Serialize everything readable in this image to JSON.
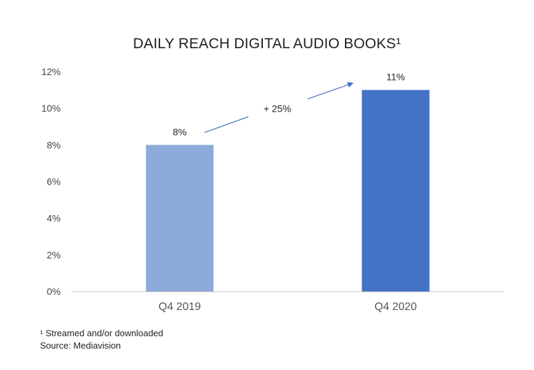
{
  "chart_data": {
    "type": "bar",
    "title": "DAILY REACH DIGITAL AUDIO BOOKS¹",
    "categories": [
      "Q4 2019",
      "Q4 2020"
    ],
    "values": [
      8,
      11
    ],
    "data_labels": [
      "8%",
      "11%"
    ],
    "bar_colors": [
      "#8eaadb",
      "#4472c4"
    ],
    "ylim": [
      0,
      12
    ],
    "yticks": [
      0,
      2,
      4,
      6,
      8,
      10,
      12
    ],
    "ytick_labels": [
      "0%",
      "2%",
      "4%",
      "6%",
      "8%",
      "10%",
      "12%"
    ],
    "xlabel": "",
    "ylabel": "",
    "grid": false,
    "annotation": {
      "text": "+ 25%",
      "color": "#4472c4"
    }
  },
  "footnotes": {
    "note": "¹ Streamed and/or downloaded",
    "source": "Source: Mediavision"
  }
}
